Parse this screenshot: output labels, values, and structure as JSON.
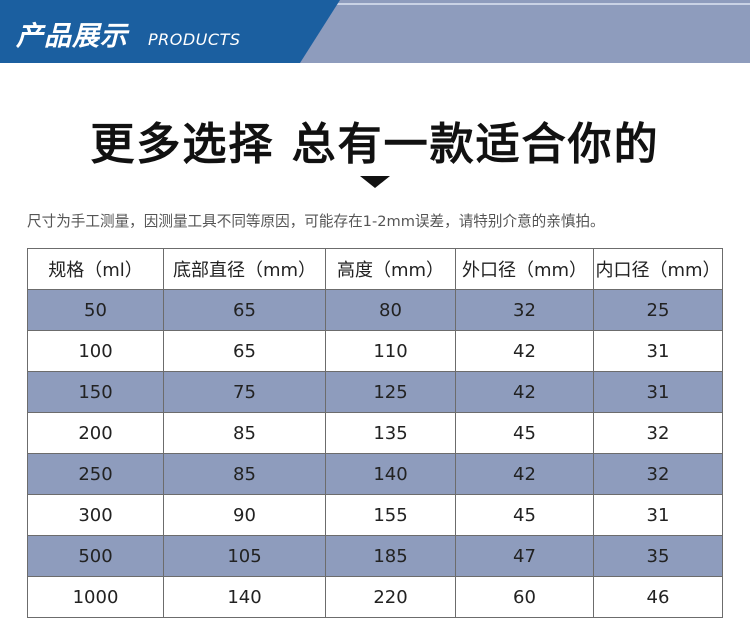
{
  "banner": {
    "title": "产品展示",
    "subtitle": "PRODUCTS"
  },
  "headline": "更多选择 总有一款适合你的",
  "note": "尺寸为手工测量，因测量工具不同等原因，可能存在1-2mm误差，请特别介意的亲慎拍。",
  "colors": {
    "banner_blue": "#1b5fa0",
    "banner_gray": "#8e9cbd",
    "row_shade": "#8e9cbd"
  },
  "icons": [
    "down-triangle-icon"
  ],
  "table": {
    "headers": [
      "规格（ml）",
      "底部直径（mm）",
      "高度（mm）",
      "外口径（mm）",
      "内口径（mm）"
    ],
    "rows": [
      [
        "50",
        "65",
        "80",
        "32",
        "25"
      ],
      [
        "100",
        "65",
        "110",
        "42",
        "31"
      ],
      [
        "150",
        "75",
        "125",
        "42",
        "31"
      ],
      [
        "200",
        "85",
        "135",
        "45",
        "32"
      ],
      [
        "250",
        "85",
        "140",
        "42",
        "32"
      ],
      [
        "300",
        "90",
        "155",
        "45",
        "31"
      ],
      [
        "500",
        "105",
        "185",
        "47",
        "35"
      ],
      [
        "1000",
        "140",
        "220",
        "60",
        "46"
      ]
    ]
  }
}
